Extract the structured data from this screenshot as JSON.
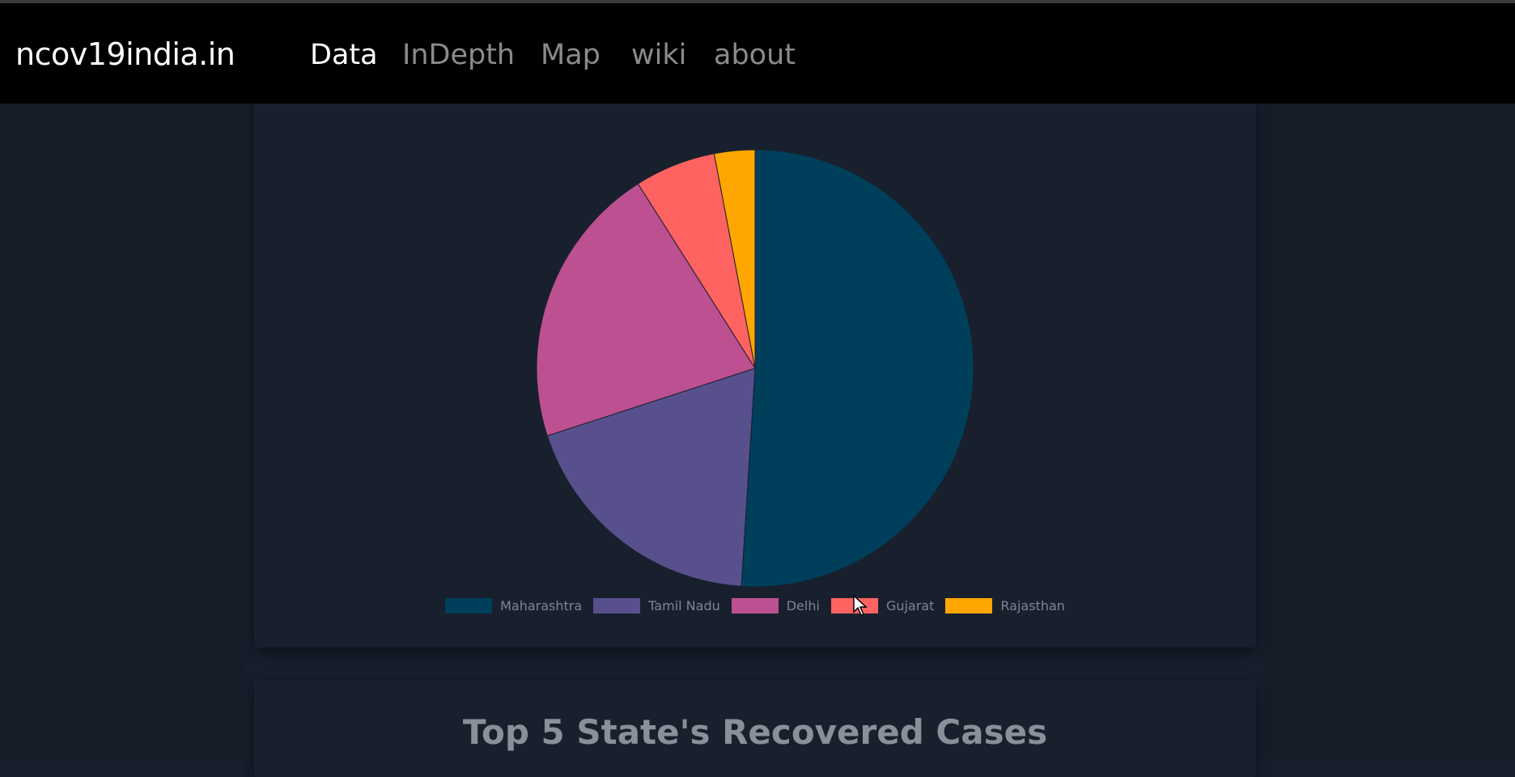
{
  "nav": {
    "brand": "ncov19india.in",
    "links": [
      {
        "label": "Data",
        "active": true
      },
      {
        "label": "InDepth",
        "active": false
      },
      {
        "label": "Map",
        "active": false
      },
      {
        "label": "wiki",
        "active": false
      },
      {
        "label": "about",
        "active": false
      }
    ]
  },
  "chart_data": {
    "type": "pie",
    "categories": [
      "Maharashtra",
      "Tamil Nadu",
      "Delhi",
      "Gujarat",
      "Rajasthan"
    ],
    "values": [
      51,
      19,
      21,
      6,
      3
    ],
    "colors": [
      "#003f5c",
      "#58508d",
      "#bc5090",
      "#ff6361",
      "#ffa600"
    ],
    "legend_position": "bottom"
  },
  "next_card": {
    "title": "Top 5 State's Recovered Cases"
  }
}
